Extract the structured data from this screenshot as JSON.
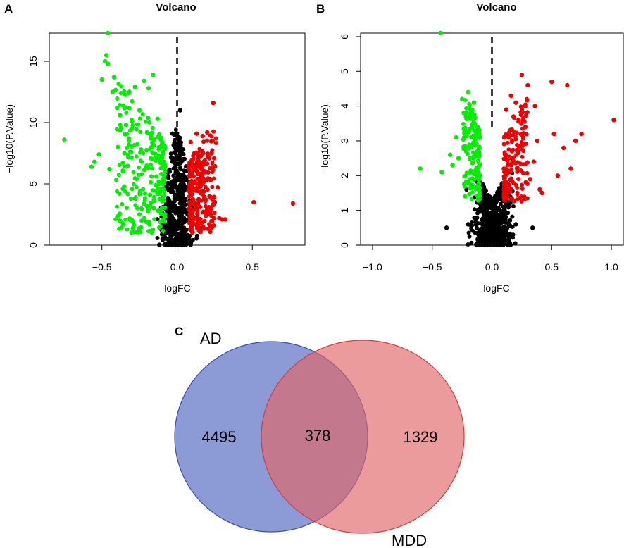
{
  "panels": {
    "a": {
      "letter": "A",
      "chart_data": {
        "type": "scatter",
        "title": "Volcano",
        "xlabel": "logFC",
        "ylabel": "−log10(P.Value)",
        "xlim": [
          -0.85,
          0.85
        ],
        "ylim": [
          0,
          17.3
        ],
        "xticks": [
          -0.5,
          0.0,
          0.5
        ],
        "xtick_labels": [
          "−0.5",
          "0.0",
          "0.5"
        ],
        "yticks": [
          0,
          5,
          10,
          15
        ],
        "ytick_labels": [
          "0",
          "5",
          "10",
          "15"
        ],
        "vline_x": 0,
        "colors": {
          "down": "#00ee00",
          "up": "#ee0000",
          "ns": "#000000"
        },
        "series": [
          {
            "name": "down",
            "points": [
              [
                -0.75,
                8.6
              ],
              [
                -0.57,
                6.4
              ],
              [
                -0.55,
                6.8
              ],
              [
                -0.52,
                7.4
              ],
              [
                -0.5,
                13.5
              ],
              [
                -0.48,
                15
              ],
              [
                -0.47,
                15.5
              ],
              [
                -0.46,
                14.8
              ],
              [
                -0.46,
                17.3
              ],
              [
                -0.45,
                6.2
              ],
              [
                -0.43,
                12.5
              ],
              [
                -0.42,
                13.7
              ],
              [
                -0.4,
                11.2
              ],
              [
                -0.38,
                10.6
              ],
              [
                -0.38,
                2.0
              ],
              [
                -0.36,
                11.4
              ],
              [
                -0.35,
                7.5
              ],
              [
                -0.34,
                9.8
              ],
              [
                -0.32,
                8.7
              ],
              [
                -0.3,
                10.1
              ],
              [
                -0.28,
                12.9
              ],
              [
                -0.27,
                5.4
              ],
              [
                -0.25,
                11.0
              ],
              [
                -0.24,
                7.8
              ],
              [
                -0.22,
                13.4
              ],
              [
                -0.21,
                6.3
              ],
              [
                -0.2,
                9.2
              ],
              [
                -0.19,
                12.8
              ],
              [
                -0.18,
                4.1
              ],
              [
                -0.17,
                8.0
              ],
              [
                -0.16,
                13.9
              ],
              [
                -0.15,
                3.6
              ],
              [
                -0.14,
                6.9
              ],
              [
                -0.13,
                10.3
              ],
              [
                -0.12,
                5.0
              ],
              [
                -0.11,
                2.8
              ],
              [
                -0.1,
                7.1
              ]
            ]
          },
          {
            "name": "up",
            "points": [
              [
                0.09,
                8.4
              ],
              [
                0.1,
                4.8
              ],
              [
                0.11,
                2.3
              ],
              [
                0.12,
                6.5
              ],
              [
                0.13,
                9.1
              ],
              [
                0.14,
                3.2
              ],
              [
                0.15,
                7.2
              ],
              [
                0.16,
                5.5
              ],
              [
                0.17,
                8.9
              ],
              [
                0.18,
                3.8
              ],
              [
                0.19,
                6.0
              ],
              [
                0.2,
                9.2
              ],
              [
                0.21,
                2.9
              ],
              [
                0.22,
                5.4
              ],
              [
                0.23,
                7.5
              ],
              [
                0.24,
                11.6
              ],
              [
                0.25,
                3.5
              ],
              [
                0.27,
                4.7
              ],
              [
                0.28,
                2.2
              ],
              [
                0.3,
                2.1
              ],
              [
                0.32,
                2.1
              ],
              [
                0.51,
                3.5
              ],
              [
                0.77,
                3.4
              ]
            ]
          },
          {
            "name": "ns",
            "points": [
              [
                0.02,
                11.0
              ],
              [
                0.0,
                7.2
              ],
              [
                -0.03,
                9.1
              ],
              [
                -0.05,
                6.0
              ],
              [
                0.04,
                7.8
              ],
              [
                -0.07,
                4.8
              ],
              [
                0.06,
                5.4
              ]
            ]
          }
        ]
      }
    },
    "b": {
      "letter": "B",
      "chart_data": {
        "type": "scatter",
        "title": "Volcano",
        "xlabel": "logFC",
        "ylabel": "−log10(P.Value)",
        "xlim": [
          -1.1,
          1.1
        ],
        "ylim": [
          0,
          6.1
        ],
        "xticks": [
          -1.0,
          -0.5,
          0.0,
          0.5,
          1.0
        ],
        "xtick_labels": [
          "−1.0",
          "−0.5",
          "0.0",
          "0.5",
          "1.0"
        ],
        "yticks": [
          0,
          1,
          2,
          3,
          4,
          5,
          6
        ],
        "ytick_labels": [
          "0",
          "1",
          "2",
          "3",
          "4",
          "5",
          "6"
        ],
        "vline_x": 0,
        "colors": {
          "down": "#00ee00",
          "up": "#ee0000",
          "ns": "#000000"
        },
        "series": [
          {
            "name": "down",
            "points": [
              [
                -0.6,
                2.2
              ],
              [
                -0.42,
                2.1
              ],
              [
                -0.43,
                6.1
              ],
              [
                -0.35,
                2.6
              ],
              [
                -0.33,
                2.3
              ],
              [
                -0.3,
                3.1
              ],
              [
                -0.28,
                2.5
              ],
              [
                -0.25,
                4.2
              ],
              [
                -0.23,
                3.3
              ],
              [
                -0.2,
                4.4
              ],
              [
                -0.19,
                2.8
              ],
              [
                -0.17,
                3.7
              ],
              [
                -0.15,
                4.1
              ],
              [
                -0.13,
                2.2
              ],
              [
                -0.12,
                3.4
              ],
              [
                -0.11,
                1.6
              ],
              [
                -0.1,
                2.0
              ]
            ]
          },
          {
            "name": "up",
            "points": [
              [
                0.1,
                2.2
              ],
              [
                0.12,
                3.9
              ],
              [
                0.14,
                3.1
              ],
              [
                0.16,
                4.3
              ],
              [
                0.18,
                3.7
              ],
              [
                0.2,
                4.1
              ],
              [
                0.22,
                2.7
              ],
              [
                0.25,
                4.9
              ],
              [
                0.28,
                3.4
              ],
              [
                0.3,
                4.6
              ],
              [
                0.32,
                1.9
              ],
              [
                0.35,
                2.4
              ],
              [
                0.36,
                4.0
              ],
              [
                0.38,
                3.0
              ],
              [
                0.4,
                1.6
              ],
              [
                0.42,
                1.5
              ],
              [
                0.5,
                4.7
              ],
              [
                0.52,
                3.2
              ],
              [
                0.55,
                2.0
              ],
              [
                0.6,
                2.8
              ],
              [
                0.63,
                4.6
              ],
              [
                0.66,
                2.2
              ],
              [
                0.7,
                3.0
              ],
              [
                0.75,
                3.2
              ],
              [
                1.02,
                3.6
              ]
            ]
          },
          {
            "name": "ns",
            "points": [
              [
                -0.1,
                1.0
              ],
              [
                0.1,
                1.0
              ],
              [
                0.05,
                0.6
              ],
              [
                -0.05,
                0.6
              ],
              [
                -0.2,
                0.6
              ],
              [
                0.2,
                0.6
              ],
              [
                0.34,
                0.5
              ],
              [
                -0.38,
                0.5
              ]
            ]
          }
        ]
      }
    },
    "c": {
      "letter": "C",
      "chart_data": {
        "type": "venn",
        "sets": [
          {
            "name": "AD",
            "only": 4495,
            "color": "#5b6fc4"
          },
          {
            "name": "MDD",
            "only": 1329,
            "color": "#e06666"
          }
        ],
        "overlap": 378
      }
    }
  }
}
